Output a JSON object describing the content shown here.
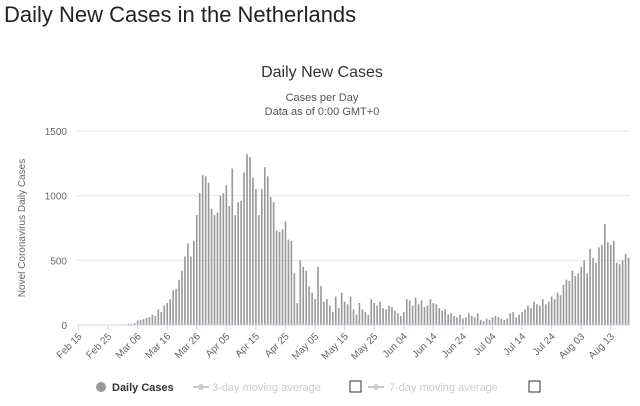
{
  "page": {
    "title": "Daily New Cases in the Netherlands"
  },
  "chart_data": {
    "type": "bar",
    "title": "Daily New Cases",
    "subtitle_line1": "Cases per Day",
    "subtitle_line2": "Data as of 0:00 GMT+0",
    "ylabel": "Novel Coronavirus Daily Cases",
    "xlabel": "",
    "ylim": [
      0,
      1500
    ],
    "yticks": [
      "0",
      "500",
      "1000",
      "1500"
    ],
    "ytick_values": [
      0,
      500,
      1000,
      1500
    ],
    "start_date": "Feb 15",
    "xtick_labels": [
      "Feb 15",
      "Feb 25",
      "Mar 06",
      "Mar 16",
      "Mar 26",
      "Apr 05",
      "Apr 15",
      "Apr 25",
      "May 05",
      "May 15",
      "May 25",
      "Jun 04",
      "Jun 14",
      "Jun 24",
      "Jul 04",
      "Jul 14",
      "Jul 24",
      "Aug 03",
      "Aug 13"
    ],
    "xtick_day_index": [
      0,
      10,
      20,
      30,
      40,
      50,
      60,
      70,
      80,
      90,
      100,
      110,
      120,
      130,
      140,
      150,
      160,
      170,
      180
    ],
    "series": [
      {
        "name": "Daily Cases",
        "color": "#999999",
        "values": [
          0,
          0,
          0,
          0,
          0,
          0,
          0,
          0,
          0,
          0,
          0,
          0,
          0,
          2,
          5,
          6,
          5,
          10,
          8,
          15,
          35,
          40,
          45,
          55,
          60,
          80,
          70,
          120,
          100,
          150,
          170,
          200,
          270,
          280,
          350,
          420,
          530,
          630,
          530,
          650,
          850,
          1020,
          1160,
          1150,
          1100,
          900,
          850,
          870,
          1000,
          1020,
          1080,
          920,
          1210,
          850,
          950,
          960,
          1180,
          1320,
          1300,
          1140,
          1050,
          850,
          1050,
          1220,
          1150,
          990,
          950,
          730,
          720,
          740,
          800,
          660,
          650,
          400,
          170,
          500,
          450,
          420,
          300,
          250,
          200,
          450,
          300,
          180,
          200,
          150,
          100,
          220,
          130,
          250,
          180,
          160,
          220,
          120,
          80,
          170,
          120,
          100,
          80,
          200,
          170,
          150,
          180,
          130,
          120,
          150,
          140,
          110,
          90,
          70,
          100,
          200,
          190,
          150,
          210,
          160,
          190,
          140,
          150,
          200,
          170,
          160,
          130,
          110,
          120,
          80,
          90,
          70,
          60,
          80,
          50,
          60,
          90,
          70,
          60,
          90,
          40,
          30,
          50,
          40,
          60,
          70,
          60,
          50,
          40,
          50,
          90,
          100,
          60,
          80,
          100,
          120,
          150,
          130,
          180,
          160,
          150,
          200,
          160,
          180,
          220,
          200,
          250,
          230,
          310,
          350,
          340,
          420,
          380,
          400,
          450,
          500,
          400,
          590,
          520,
          480,
          600,
          620,
          780,
          640,
          620,
          650,
          480,
          470,
          500,
          550,
          520
        ]
      }
    ],
    "legend": [
      {
        "label": "Daily Cases",
        "color": "#999999",
        "active": true
      },
      {
        "label": "3-day moving average",
        "color": "#cccccc",
        "active": false
      },
      {
        "label": "7-day moving average",
        "color": "#cccccc",
        "active": false
      }
    ]
  }
}
